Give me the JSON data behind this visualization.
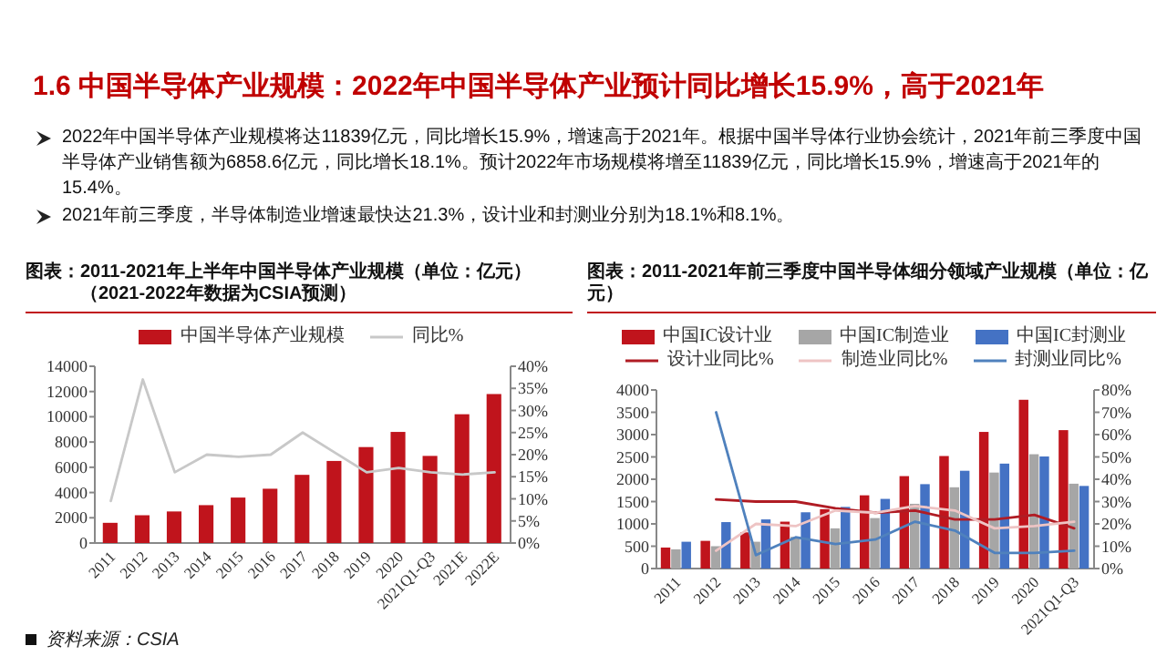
{
  "chart_data": [
    {
      "type": "other",
      "title": "1.6 中国半导体产业规模：2022年中国半导体产业预计同比增长15.9%，高于2021年",
      "annotations": [
        "2022年中国半导体产业规模将达11839亿元，同比增长15.9%，增速高于2021年。根据中国半导体行业协会统计，2021年前三季度中国半导体产业销售额为6858.6亿元，同比增长18.1%。预计2022年市场规模将增至11839亿元，同比增长15.9%，增速高于2021年的15.4%。",
        "2021年前三季度，半导体制造业增速最快达21.3%，设计业和封测业分别为18.1%和8.1%。"
      ]
    },
    {
      "type": "bar",
      "title": "图表：2011-2021年上半年中国半导体产业规模（单位：亿元）",
      "subtitle": "（2021-2022年数据为CSIA预测）",
      "categories": [
        "2011",
        "2012",
        "2013",
        "2014",
        "2015",
        "2016",
        "2017",
        "2018",
        "2019",
        "2020",
        "2021Q1-Q3",
        "2021E",
        "2022E"
      ],
      "series": [
        {
          "name": "中国半导体产业规模",
          "type": "bar",
          "color": "#c0141c",
          "values": [
            1600,
            2200,
            2500,
            3000,
            3600,
            4300,
            5400,
            6500,
            7600,
            8800,
            6900,
            10200,
            11800
          ]
        },
        {
          "name": "同比%",
          "type": "line",
          "axis": "y2",
          "color": "#c8c8c8",
          "values": [
            9.5,
            37,
            16,
            20,
            19.5,
            20,
            25,
            20.5,
            16,
            17,
            16,
            15.5,
            16
          ]
        }
      ],
      "ylim": [
        0,
        14000
      ],
      "yticks": [
        0,
        2000,
        4000,
        6000,
        8000,
        10000,
        12000,
        14000
      ],
      "y2lim": [
        0,
        40
      ],
      "y2ticks": [
        {
          "value": 0,
          "label": "0%"
        },
        {
          "value": 5,
          "label": "5%"
        },
        {
          "value": 10,
          "label": "10%"
        },
        {
          "value": 15,
          "label": "15%"
        },
        {
          "value": 20,
          "label": "20%"
        },
        {
          "value": 25,
          "label": "25%"
        },
        {
          "value": 30,
          "label": "30%"
        },
        {
          "value": 35,
          "label": "35%"
        },
        {
          "value": 40,
          "label": "40%"
        }
      ],
      "legend": "top",
      "annotations": [
        "资料来源：CSIA"
      ]
    },
    {
      "type": "bar",
      "title": "图表：2011-2021年前三季度中国半导体细分领域产业规模（单位：亿元）",
      "categories": [
        "2011",
        "2012",
        "2013",
        "2014",
        "2015",
        "2016",
        "2017",
        "2018",
        "2019",
        "2020",
        "2021Q1-Q3"
      ],
      "series": [
        {
          "name": "中国IC设计业",
          "type": "bar",
          "color": "#c0141c",
          "values": [
            470,
            620,
            810,
            1050,
            1330,
            1640,
            2070,
            2520,
            3060,
            3780,
            3100
          ]
        },
        {
          "name": "中国IC制造业",
          "type": "bar",
          "color": "#a6a6a6",
          "values": [
            430,
            500,
            600,
            710,
            900,
            1130,
            1450,
            1820,
            2150,
            2560,
            1900
          ]
        },
        {
          "name": "中国IC封测业",
          "type": "bar",
          "color": "#4472c4",
          "values": [
            600,
            1040,
            1100,
            1260,
            1380,
            1560,
            1890,
            2190,
            2350,
            2510,
            1850
          ]
        },
        {
          "name": "设计业同比%",
          "type": "line",
          "axis": "y2",
          "color": "#b01c24",
          "values": [
            null,
            31,
            30,
            30,
            27,
            25,
            26,
            22,
            22,
            24,
            18
          ]
        },
        {
          "name": "制造业同比%",
          "type": "line",
          "axis": "y2",
          "color": "#eec4c4",
          "values": [
            null,
            8,
            20,
            19,
            26,
            25,
            28,
            26,
            18,
            19,
            21
          ]
        },
        {
          "name": "封测业同比%",
          "type": "line",
          "axis": "y2",
          "color": "#4f81bd",
          "values": [
            null,
            70,
            6,
            14,
            11,
            13,
            21,
            17,
            7,
            7,
            8
          ]
        }
      ],
      "ylim": [
        0,
        4000
      ],
      "yticks": [
        0,
        500,
        1000,
        1500,
        2000,
        2500,
        3000,
        3500,
        4000
      ],
      "y2lim": [
        0,
        80
      ],
      "y2ticks": [
        {
          "value": 0,
          "label": "0%"
        },
        {
          "value": 10,
          "label": "10%"
        },
        {
          "value": 20,
          "label": "20%"
        },
        {
          "value": 30,
          "label": "30%"
        },
        {
          "value": 40,
          "label": "40%"
        },
        {
          "value": 50,
          "label": "50%"
        },
        {
          "value": 60,
          "label": "60%"
        },
        {
          "value": 70,
          "label": "70%"
        },
        {
          "value": 80,
          "label": "80%"
        }
      ],
      "legend": "top"
    }
  ]
}
